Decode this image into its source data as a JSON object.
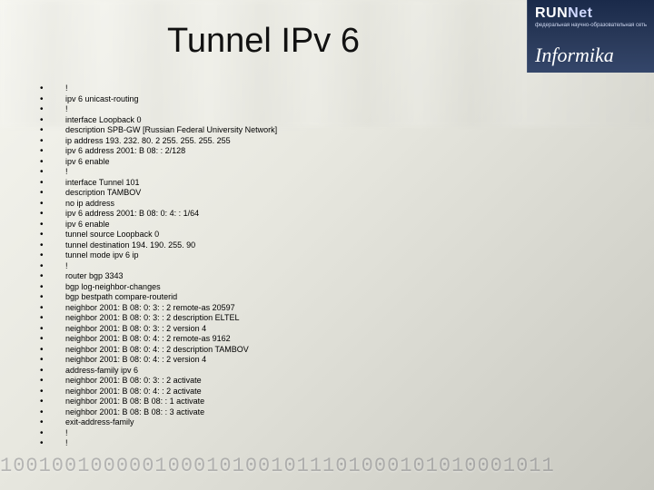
{
  "title": "Tunnel IPv 6",
  "logos": {
    "runnet_brand_a": "RUN",
    "runnet_brand_b": "Net",
    "runnet_sub": "федеральная научно-образовательная сеть",
    "informika": "Informika"
  },
  "bg_bits": "1001001000001000101001011101000101010001011",
  "config_lines": [
    "!",
    "ipv 6 unicast-routing",
    "!",
    "interface Loopback 0",
    "description SPB-GW [Russian Federal University Network]",
    "ip address 193. 232. 80. 2 255. 255. 255. 255",
    "ipv 6 address 2001: B 08: : 2/128",
    "ipv 6 enable",
    "!",
    "interface Tunnel 101",
    "description TAMBOV",
    "no ip address",
    "ipv 6 address 2001: B 08: 0: 4: : 1/64",
    "ipv 6 enable",
    "tunnel source Loopback 0",
    "tunnel destination 194. 190. 255. 90",
    "tunnel mode ipv 6 ip",
    "!",
    "router bgp 3343",
    "bgp log-neighbor-changes",
    "bgp bestpath compare-routerid",
    "neighbor 2001: B 08: 0: 3: : 2 remote-as 20597",
    "neighbor 2001: B 08: 0: 3: : 2 description ELTEL",
    "neighbor 2001: B 08: 0: 3: : 2 version 4",
    "neighbor 2001: B 08: 0: 4: : 2 remote-as 9162",
    "neighbor 2001: B 08: 0: 4: : 2 description TAMBOV",
    "neighbor 2001: B 08: 0: 4: : 2 version 4",
    "address-family ipv 6",
    "neighbor 2001: B 08: 0: 3: : 2 activate",
    "neighbor 2001: B 08: 0: 4: : 2 activate",
    "neighbor 2001: B 08: B 08: : 1 activate",
    "neighbor 2001: B 08: B 08: : 3 activate",
    "exit-address-family",
    "!",
    "!"
  ]
}
